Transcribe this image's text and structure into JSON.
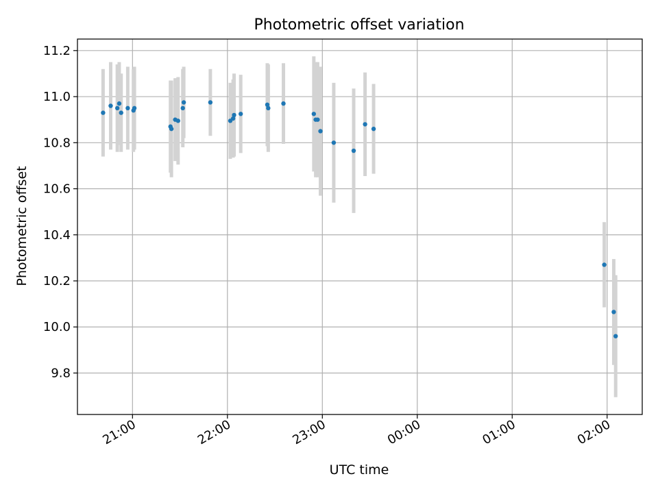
{
  "chart_data": {
    "type": "scatter",
    "title": "Photometric offset variation",
    "xlabel": "UTC time",
    "ylabel": "Photometric offset",
    "x_unit": "time (UTC, hours since 00:00; values past 24 are the following night)",
    "xlim": [
      20.42,
      26.37
    ],
    "ylim": [
      9.62,
      11.25
    ],
    "x_ticks": [
      {
        "value": 21,
        "label": "21:00"
      },
      {
        "value": 22,
        "label": "22:00"
      },
      {
        "value": 23,
        "label": "23:00"
      },
      {
        "value": 24,
        "label": "00:00"
      },
      {
        "value": 25,
        "label": "01:00"
      },
      {
        "value": 26,
        "label": "02:00"
      }
    ],
    "y_ticks": [
      {
        "value": 9.8,
        "label": "9.8"
      },
      {
        "value": 10.0,
        "label": "10.0"
      },
      {
        "value": 10.2,
        "label": "10.2"
      },
      {
        "value": 10.4,
        "label": "10.4"
      },
      {
        "value": 10.6,
        "label": "10.6"
      },
      {
        "value": 10.8,
        "label": "10.8"
      },
      {
        "value": 11.0,
        "label": "11.0"
      },
      {
        "value": 11.2,
        "label": "11.2"
      }
    ],
    "grid": true,
    "legend": "none",
    "colors": {
      "marker": "#1f77b4",
      "errorbar": "#d3d3d3",
      "grid": "#b0b0b0",
      "axes": "#000000"
    },
    "series": [
      {
        "points": [
          {
            "x": 20.69,
            "y": 10.93,
            "err": 0.19
          },
          {
            "x": 20.77,
            "y": 10.96,
            "err": 0.19
          },
          {
            "x": 20.84,
            "y": 10.95,
            "err": 0.19
          },
          {
            "x": 20.86,
            "y": 10.97,
            "err": 0.18
          },
          {
            "x": 20.88,
            "y": 10.93,
            "err": 0.17
          },
          {
            "x": 20.95,
            "y": 10.95,
            "err": 0.18
          },
          {
            "x": 21.01,
            "y": 10.94,
            "err": 0.18
          },
          {
            "x": 21.02,
            "y": 10.95,
            "err": 0.18
          },
          {
            "x": 21.4,
            "y": 10.87,
            "err": 0.2
          },
          {
            "x": 21.41,
            "y": 10.86,
            "err": 0.21
          },
          {
            "x": 21.45,
            "y": 10.9,
            "err": 0.18
          },
          {
            "x": 21.48,
            "y": 10.895,
            "err": 0.19
          },
          {
            "x": 21.53,
            "y": 10.95,
            "err": 0.17
          },
          {
            "x": 21.54,
            "y": 10.975,
            "err": 0.155
          },
          {
            "x": 21.82,
            "y": 10.975,
            "err": 0.145
          },
          {
            "x": 22.03,
            "y": 10.895,
            "err": 0.165
          },
          {
            "x": 22.06,
            "y": 10.905,
            "err": 0.17
          },
          {
            "x": 22.07,
            "y": 10.92,
            "err": 0.18
          },
          {
            "x": 22.14,
            "y": 10.925,
            "err": 0.17
          },
          {
            "x": 22.42,
            "y": 10.965,
            "err": 0.18
          },
          {
            "x": 22.43,
            "y": 10.95,
            "err": 0.19
          },
          {
            "x": 22.59,
            "y": 10.97,
            "err": 0.175
          },
          {
            "x": 22.91,
            "y": 10.925,
            "err": 0.25
          },
          {
            "x": 22.93,
            "y": 10.9,
            "err": 0.25
          },
          {
            "x": 22.95,
            "y": 10.9,
            "err": 0.25
          },
          {
            "x": 22.98,
            "y": 10.85,
            "err": 0.28
          },
          {
            "x": 23.12,
            "y": 10.8,
            "err": 0.26
          },
          {
            "x": 23.33,
            "y": 10.765,
            "err": 0.27
          },
          {
            "x": 23.45,
            "y": 10.88,
            "err": 0.225
          },
          {
            "x": 23.54,
            "y": 10.86,
            "err": 0.195
          },
          {
            "x": 25.97,
            "y": 10.27,
            "err": 0.185
          },
          {
            "x": 26.07,
            "y": 10.065,
            "err": 0.23
          },
          {
            "x": 26.09,
            "y": 9.96,
            "err": 0.265
          }
        ]
      }
    ]
  }
}
